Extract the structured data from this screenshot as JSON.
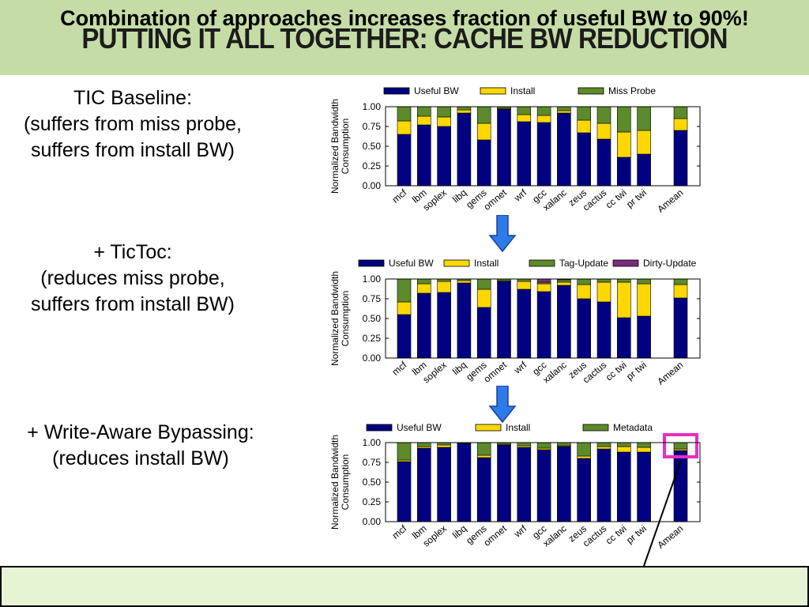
{
  "slide": {
    "title": "PUTTING IT ALL TOGETHER: CACHE BW REDUCTION",
    "callout": "Combination of approaches increases fraction of useful BW to 90%!"
  },
  "descriptions": [
    {
      "lines": [
        "TIC Baseline:",
        "(suffers from miss probe,",
        "suffers from install BW)"
      ]
    },
    {
      "lines": [
        "+ TicToc:",
        "(reduces miss probe,",
        "suffers from install BW)"
      ]
    },
    {
      "lines": [
        "+ Write-Aware Bypassing:",
        "(reduces install BW)"
      ]
    }
  ],
  "colors": {
    "useful": "#000080",
    "install": "#ffd700",
    "green": "#5d8a2a",
    "dirty": "#7b2c7b",
    "highlight": "#e62ec6"
  },
  "chart_data": [
    {
      "type": "bar",
      "stacked": true,
      "ylabel": "Normalized Bandwidth Consumption",
      "ylim": [
        0,
        1.0
      ],
      "yticks": [
        "0.00",
        "0.25",
        "0.50",
        "0.75",
        "1.00"
      ],
      "categories": [
        "mcf",
        "lbm",
        "soplex",
        "libq",
        "gems",
        "omnet",
        "wrf",
        "gcc",
        "xalanc",
        "zeus",
        "cactus",
        "cc twi",
        "pr twi",
        "Amean"
      ],
      "legend": "top",
      "series": [
        {
          "name": "Useful BW",
          "values": [
            0.65,
            0.77,
            0.75,
            0.92,
            0.58,
            0.97,
            0.81,
            0.8,
            0.92,
            0.67,
            0.59,
            0.36,
            0.4,
            0.7
          ]
        },
        {
          "name": "Install",
          "values": [
            0.17,
            0.11,
            0.12,
            0.04,
            0.21,
            0.01,
            0.09,
            0.09,
            0.03,
            0.16,
            0.2,
            0.32,
            0.3,
            0.15
          ]
        },
        {
          "name": "Miss Probe",
          "values": [
            0.18,
            0.12,
            0.13,
            0.04,
            0.21,
            0.02,
            0.1,
            0.11,
            0.05,
            0.17,
            0.21,
            0.32,
            0.3,
            0.15
          ]
        }
      ]
    },
    {
      "type": "bar",
      "stacked": true,
      "ylabel": "Normalized Bandwidth Consumption",
      "ylim": [
        0,
        1.0
      ],
      "yticks": [
        "0.00",
        "0.25",
        "0.50",
        "0.75",
        "1.00"
      ],
      "categories": [
        "mcf",
        "lbm",
        "soplex",
        "libq",
        "gems",
        "omnet",
        "wrf",
        "gcc",
        "xalanc",
        "zeus",
        "cactus",
        "cc twi",
        "pr twi",
        "Amean"
      ],
      "legend": "top",
      "series": [
        {
          "name": "Useful BW",
          "values": [
            0.55,
            0.82,
            0.83,
            0.95,
            0.64,
            0.97,
            0.87,
            0.84,
            0.92,
            0.75,
            0.71,
            0.51,
            0.53,
            0.76
          ]
        },
        {
          "name": "Install",
          "values": [
            0.16,
            0.12,
            0.14,
            0.03,
            0.23,
            0.01,
            0.1,
            0.1,
            0.04,
            0.18,
            0.25,
            0.45,
            0.41,
            0.17
          ]
        },
        {
          "name": "Tag-Update",
          "values": [
            0.29,
            0.06,
            0.03,
            0.02,
            0.13,
            0.02,
            0.03,
            0.02,
            0.03,
            0.07,
            0.04,
            0.04,
            0.06,
            0.07
          ]
        },
        {
          "name": "Dirty-Update",
          "values": [
            0,
            0,
            0,
            0,
            0,
            0,
            0,
            0.04,
            0.01,
            0,
            0,
            0,
            0,
            0
          ]
        }
      ]
    },
    {
      "type": "bar",
      "stacked": true,
      "ylabel": "Normalized Bandwidth Consumption",
      "ylim": [
        0,
        1.0
      ],
      "yticks": [
        "0.00",
        "0.25",
        "0.50",
        "0.75",
        "1.00"
      ],
      "categories": [
        "mcf",
        "lbm",
        "soplex",
        "libq",
        "gems",
        "omnet",
        "wrf",
        "gcc",
        "xalanc",
        "zeus",
        "cactus",
        "cc twi",
        "pr twi",
        "Amean"
      ],
      "legend": "top",
      "highlight": "Amean",
      "series": [
        {
          "name": "Useful BW",
          "values": [
            0.76,
            0.93,
            0.94,
            0.99,
            0.81,
            0.97,
            0.94,
            0.91,
            0.95,
            0.8,
            0.92,
            0.88,
            0.88,
            0.9
          ]
        },
        {
          "name": "Install",
          "values": [
            0.02,
            0.02,
            0.03,
            0.0,
            0.03,
            0.01,
            0.02,
            0.02,
            0.01,
            0.03,
            0.03,
            0.07,
            0.06,
            0.02
          ]
        },
        {
          "name": "Metadata",
          "values": [
            0.22,
            0.05,
            0.03,
            0.01,
            0.16,
            0.02,
            0.04,
            0.07,
            0.04,
            0.17,
            0.05,
            0.05,
            0.06,
            0.08
          ]
        }
      ]
    }
  ]
}
